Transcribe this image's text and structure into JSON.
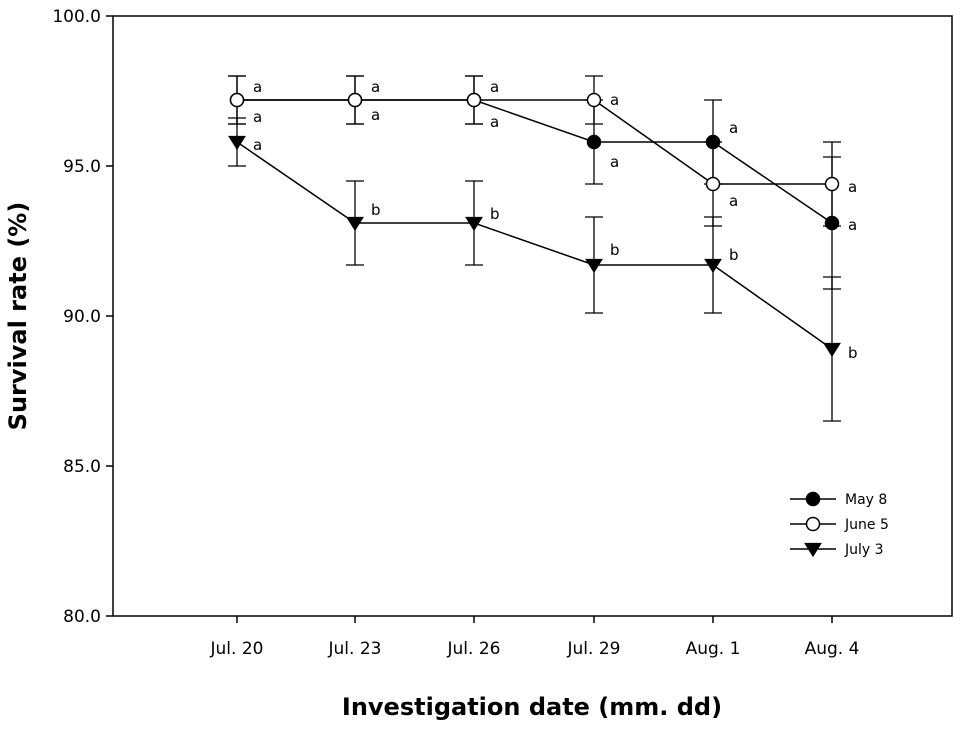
{
  "chart_data": {
    "type": "line",
    "xlabel": "Investigation date (mm. dd)",
    "ylabel": "Survival rate (%)",
    "ylim": [
      80,
      100
    ],
    "yticks": [
      "80.0",
      "85.0",
      "90.0",
      "95.0",
      "100.0"
    ],
    "categories": [
      "Jul. 20",
      "Jul. 23",
      "Jul. 26",
      "Jul. 29",
      "Aug. 1",
      "Aug. 4"
    ],
    "legend_position": "bottom-right",
    "grid": false,
    "series": [
      {
        "name": "May 8",
        "marker": "filled-circle",
        "values": [
          97.2,
          97.2,
          97.2,
          95.8,
          95.8,
          93.1
        ],
        "error": [
          0.8,
          0.8,
          0.8,
          1.4,
          1.4,
          2.2
        ],
        "letters": [
          "a",
          "a",
          "a",
          "a",
          "a",
          "a"
        ]
      },
      {
        "name": "June 5",
        "marker": "open-circle",
        "values": [
          97.2,
          97.2,
          97.2,
          97.2,
          94.4,
          94.4
        ],
        "error": [
          0.8,
          0.8,
          0.8,
          0.8,
          1.4,
          1.4
        ],
        "letters": [
          "a",
          "a",
          "a",
          "a",
          "a",
          "a"
        ]
      },
      {
        "name": "July 3",
        "marker": "filled-triangle-down",
        "values": [
          95.8,
          93.1,
          93.1,
          91.7,
          91.7,
          88.9
        ],
        "error": [
          0.8,
          1.4,
          1.4,
          1.6,
          1.6,
          2.4
        ],
        "letters": [
          "a",
          "b",
          "b",
          "b",
          "b",
          "b"
        ]
      }
    ]
  }
}
